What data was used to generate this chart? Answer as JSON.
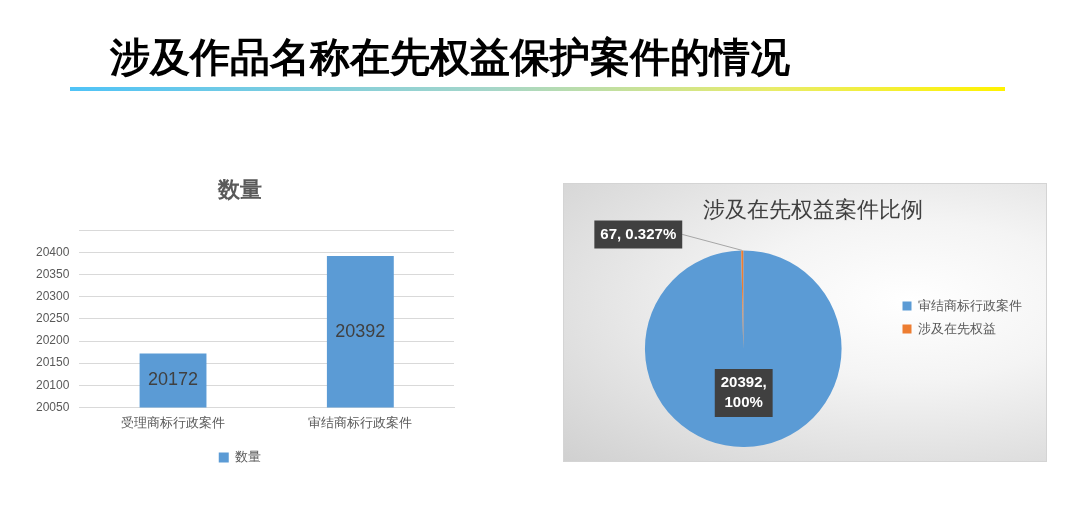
{
  "chart_data": [
    {
      "type": "other",
      "title": "涉及作品名称在先权益保护案件的情况"
    },
    {
      "type": "bar",
      "title": "数量",
      "categories": [
        "受理商标行政案件",
        "审结商标行政案件"
      ],
      "series": [
        {
          "name": "数量",
          "color": "#5b9bd5",
          "values": [
            20172,
            20392
          ]
        }
      ],
      "ylim": [
        20050,
        20450
      ],
      "yticks": [
        20050,
        20100,
        20150,
        20200,
        20250,
        20300,
        20350,
        20400,
        {
          "value": 20450,
          "label": null
        }
      ],
      "grid": "y",
      "legend": "bottom",
      "data_labels": true
    },
    {
      "type": "pie",
      "title": "涉及在先权益案件比例",
      "categories": [
        "审结商标行政案件",
        "涉及在先权益"
      ],
      "values": [
        20392,
        67
      ],
      "colors": [
        "#5b9bd5",
        "#ed7d31"
      ],
      "value_labels": [
        "20392, 100%",
        "67, 0.327%"
      ],
      "legend": "right"
    }
  ]
}
